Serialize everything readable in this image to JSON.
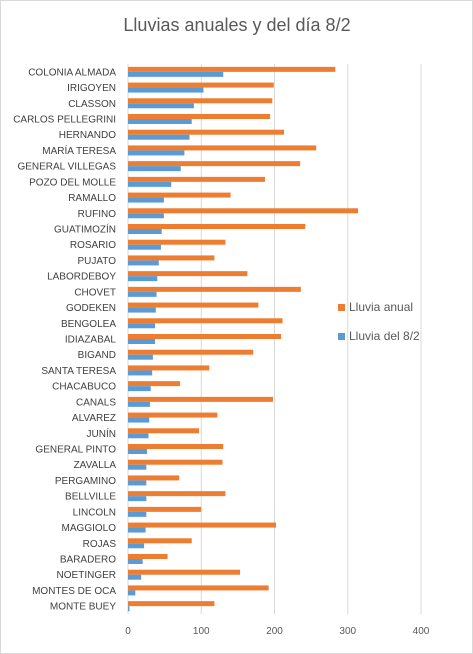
{
  "chart_data": {
    "type": "bar",
    "orientation": "horizontal",
    "title": "Lluvias anuales y del día 8/2",
    "categories": [
      "COLONIA ALMADA",
      "IRIGOYEN",
      "CLASSON",
      "CARLOS PELLEGRINI",
      "HERNANDO",
      "MARÍA TERESA",
      "GENERAL VILLEGAS",
      "POZO DEL MOLLE",
      "RAMALLO",
      "RUFINO",
      "GUATIMOZÍN",
      "ROSARIO",
      "PUJATO",
      "LABORDEBOY",
      "CHOVET",
      "GODEKEN",
      "BENGOLEA",
      "IDIAZABAL",
      "BIGAND",
      "SANTA TERESA",
      "CHACABUCO",
      "CANALS",
      "ALVAREZ",
      "JUNÍN",
      "GENERAL PINTO",
      "ZAVALLA",
      "PERGAMINO",
      "BELLVILLE",
      "LINCOLN",
      "MAGGIOLO",
      "ROJAS",
      "BARADERO",
      "NOETINGER",
      "MONTES DE OCA",
      "MONTE BUEY"
    ],
    "series": [
      {
        "name": "Lluvia anual",
        "color": "#ed7d31",
        "values": [
          283,
          199,
          197,
          194,
          213,
          257,
          235,
          187,
          140,
          314,
          242,
          133,
          118,
          163,
          236,
          178,
          211,
          209,
          171,
          111,
          71,
          198,
          122,
          97,
          130,
          129,
          70,
          133,
          100,
          202,
          87,
          54,
          153,
          192,
          118
        ]
      },
      {
        "name": "Lluvia del 8/2",
        "color": "#5b9bd5",
        "values": [
          130,
          103,
          90,
          87,
          84,
          77,
          72,
          59,
          49,
          49,
          46,
          45,
          42,
          40,
          39,
          38,
          37,
          37,
          34,
          33,
          31,
          30,
          29,
          28,
          26,
          25,
          25,
          25,
          25,
          24,
          22,
          20,
          18,
          10,
          2
        ]
      }
    ],
    "xlim": [
      0,
      400
    ],
    "xticks": [
      0,
      100,
      200,
      300,
      400
    ],
    "grid": "vertical",
    "legend_position": "right"
  }
}
